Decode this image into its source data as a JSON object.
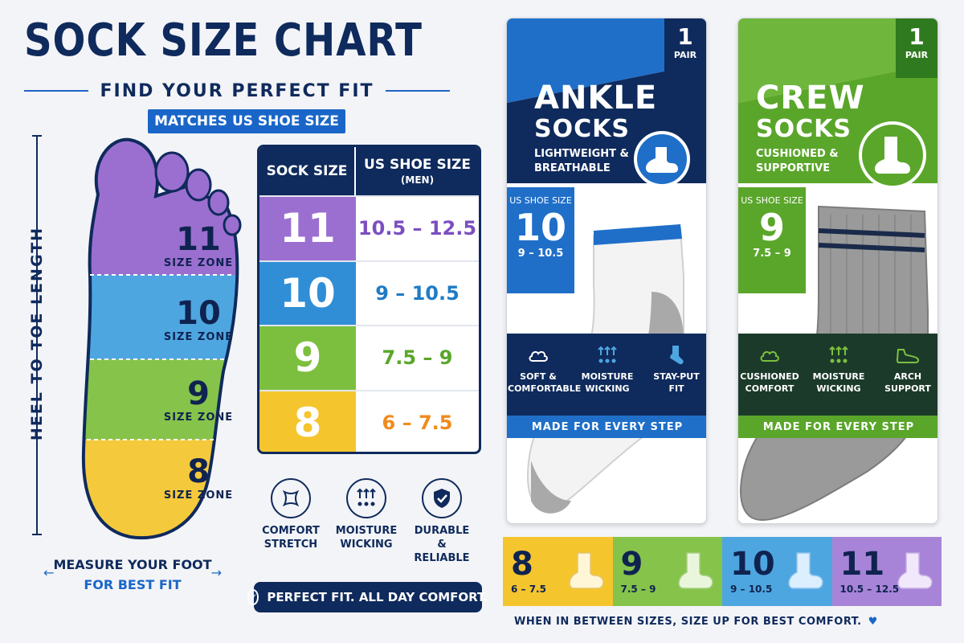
{
  "header": {
    "title": "SOCK SIZE CHART",
    "subtitle": "FIND YOUR PERFECT FIT",
    "badge": "MATCHES US SHOE SIZE"
  },
  "foot": {
    "ruler_label": "HEEL TO TOE LENGTH",
    "zones": [
      {
        "size": "11",
        "label": "SIZE ZONE",
        "color": "#9b6fd0"
      },
      {
        "size": "10",
        "label": "SIZE ZONE",
        "color": "#4ea6e0"
      },
      {
        "size": "9",
        "label": "SIZE ZONE",
        "color": "#86c34a"
      },
      {
        "size": "8",
        "label": "SIZE ZONE",
        "color": "#f4c93b"
      }
    ],
    "measure_line1": "MEASURE YOUR FOOT",
    "measure_line2": "FOR BEST FIT"
  },
  "table": {
    "col1": "SOCK SIZE",
    "col2": "US SHOE SIZE",
    "col2_sub": "(MEN)",
    "rows": [
      {
        "size": "11",
        "range": "10.5 – 12.5",
        "bg": "#9b6fd0",
        "color": "#7b4fc0"
      },
      {
        "size": "10",
        "range": "9 – 10.5",
        "bg": "#2f8ed6",
        "color": "#1f7cc6"
      },
      {
        "size": "9",
        "range": "7.5 – 9",
        "bg": "#7cbf3f",
        "color": "#5aa62a"
      },
      {
        "size": "8",
        "range": "6 – 7.5",
        "bg": "#f5c52e",
        "color": "#f08a1c"
      }
    ]
  },
  "features": [
    {
      "icon": "stretch-icon",
      "line1": "COMFORT",
      "line2": "STRETCH"
    },
    {
      "icon": "moisture-icon",
      "line1": "MOISTURE",
      "line2": "WICKING"
    },
    {
      "icon": "shield-check-icon",
      "line1": "DURABLE",
      "line2": "& RELIABLE"
    }
  ],
  "tagline": "PERFECT FIT. ALL DAY COMFORT.",
  "packages": [
    {
      "pair_num": "1",
      "pair_label": "PAIR",
      "name1": "ANKLE",
      "name2": "SOCKS",
      "desc1": "LIGHTWEIGHT &",
      "desc2": "BREATHABLE",
      "size_label": "US SHOE SIZE",
      "size": "10",
      "size_range": "9 – 10.5",
      "features": [
        {
          "line1": "SOFT &",
          "line2": "COMFORTABLE"
        },
        {
          "line1": "MOISTURE",
          "line2": "WICKING"
        },
        {
          "line1": "STAY-PUT",
          "line2": "FIT"
        }
      ],
      "made": "MADE FOR EVERY STEP",
      "accent": "#1f6fc9",
      "dark": "#0f2a5c"
    },
    {
      "pair_num": "1",
      "pair_label": "PAIR",
      "name1": "CREW",
      "name2": "SOCKS",
      "desc1": "CUSHIONED &",
      "desc2": "SUPPORTIVE",
      "size_label": "US SHOE SIZE",
      "size": "9",
      "size_range": "7.5 – 9",
      "features": [
        {
          "line1": "CUSHIONED",
          "line2": "COMFORT"
        },
        {
          "line1": "MOISTURE",
          "line2": "WICKING"
        },
        {
          "line1": "ARCH",
          "line2": "SUPPORT"
        }
      ],
      "made": "MADE FOR EVERY STEP",
      "accent": "#5aa62a",
      "dark": "#1c3a2a"
    }
  ],
  "strip": [
    {
      "size": "8",
      "range": "6 – 7.5",
      "bg": "#f5c52e"
    },
    {
      "size": "9",
      "range": "7.5 – 9",
      "bg": "#86c34a"
    },
    {
      "size": "10",
      "range": "9 – 10.5",
      "bg": "#4ea6e0"
    },
    {
      "size": "11",
      "range": "10.5 – 12.5",
      "bg": "#a784d8"
    }
  ],
  "note": "WHEN IN BETWEEN SIZES, SIZE UP FOR BEST COMFORT."
}
